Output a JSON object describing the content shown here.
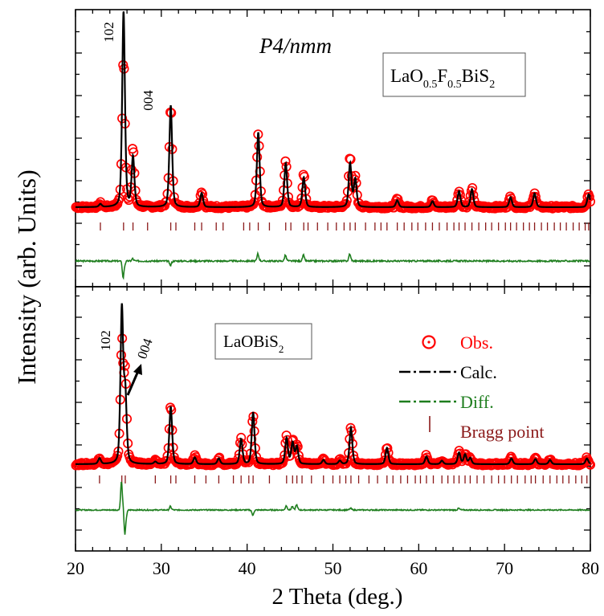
{
  "chart_data": [
    {
      "type": "line",
      "panel": "top",
      "sample_label": {
        "base": "LaO",
        "sub1": "0.5",
        "mid": "F",
        "sub2": "0.5",
        "tail": "BiS",
        "sub3": "2"
      },
      "space_group": "P4/nmm",
      "peak_annotations": [
        {
          "text": "102",
          "x": 25.5
        },
        {
          "text": "004",
          "x": 26.6
        }
      ],
      "xlim": [
        20,
        80
      ],
      "baseline": 250,
      "peaks": [
        {
          "x": 22.9,
          "obs": 268,
          "calc": 265,
          "diff": 0
        },
        {
          "x": 25.6,
          "obs": 1000,
          "calc": 1230,
          "diff": -70
        },
        {
          "x": 26.7,
          "obs": 545,
          "calc": 500,
          "diff": 10
        },
        {
          "x": 31.1,
          "obs": 760,
          "calc": 760,
          "diff": -20
        },
        {
          "x": 34.7,
          "obs": 330,
          "calc": 320,
          "diff": 0
        },
        {
          "x": 41.3,
          "obs": 620,
          "calc": 625,
          "diff": 30
        },
        {
          "x": 44.5,
          "obs": 490,
          "calc": 470,
          "diff": 25
        },
        {
          "x": 46.6,
          "obs": 415,
          "calc": 400,
          "diff": 25
        },
        {
          "x": 52.0,
          "obs": 510,
          "calc": 470,
          "diff": 30
        },
        {
          "x": 52.6,
          "obs": 400,
          "calc": 390,
          "diff": 0
        },
        {
          "x": 57.5,
          "obs": 290,
          "calc": 285,
          "diff": 0
        },
        {
          "x": 61.6,
          "obs": 285,
          "calc": 280,
          "diff": 0
        },
        {
          "x": 64.7,
          "obs": 335,
          "calc": 330,
          "diff": 0
        },
        {
          "x": 66.2,
          "obs": 345,
          "calc": 340,
          "diff": 0
        },
        {
          "x": 70.7,
          "obs": 305,
          "calc": 300,
          "diff": 0
        },
        {
          "x": 73.5,
          "obs": 325,
          "calc": 320,
          "diff": 0
        },
        {
          "x": 79.8,
          "obs": 320,
          "calc": 315,
          "diff": 0
        }
      ],
      "bragg_positions": [
        22.9,
        25.6,
        26.7,
        28.4,
        31.1,
        31.7,
        33.9,
        34.7,
        36.4,
        37.2,
        39.6,
        40.3,
        41.3,
        42.6,
        44.5,
        45.1,
        46.6,
        47.1,
        48.2,
        49.4,
        50.4,
        51.3,
        52.0,
        52.6,
        53.8,
        54.9,
        55.6,
        56.3,
        57.5,
        58.3,
        59.2,
        59.9,
        60.8,
        61.6,
        62.4,
        63.3,
        64.1,
        64.7,
        65.4,
        66.2,
        67.0,
        67.8,
        68.5,
        69.3,
        70.1,
        70.7,
        71.4,
        72.2,
        72.9,
        73.5,
        74.3,
        75.0,
        75.8,
        76.5,
        77.2,
        78.0,
        78.7,
        79.4,
        79.8
      ]
    },
    {
      "type": "line",
      "panel": "bottom",
      "sample_label": {
        "base": "LaOBiS",
        "sub": "2"
      },
      "peak_annotations": [
        {
          "text": "102",
          "x": 25.4
        },
        {
          "text": "004",
          "x": 26.1
        }
      ],
      "xlim": [
        20,
        80
      ],
      "baseline": 250,
      "peaks": [
        {
          "x": 22.8,
          "obs": 285,
          "calc": 280,
          "diff": 0
        },
        {
          "x": 25.4,
          "obs": 860,
          "calc": 1050,
          "diff": 160
        },
        {
          "x": 25.8,
          "obs": 690,
          "calc": 600,
          "diff": -140
        },
        {
          "x": 29.3,
          "obs": 265,
          "calc": 262,
          "diff": 0
        },
        {
          "x": 31.1,
          "obs": 560,
          "calc": 550,
          "diff": 20
        },
        {
          "x": 33.9,
          "obs": 290,
          "calc": 285,
          "diff": 0
        },
        {
          "x": 36.7,
          "obs": 285,
          "calc": 280,
          "diff": 0
        },
        {
          "x": 39.3,
          "obs": 385,
          "calc": 380,
          "diff": 0
        },
        {
          "x": 40.7,
          "obs": 505,
          "calc": 520,
          "diff": -30
        },
        {
          "x": 44.6,
          "obs": 395,
          "calc": 385,
          "diff": 25
        },
        {
          "x": 45.3,
          "obs": 370,
          "calc": 360,
          "diff": 20
        },
        {
          "x": 45.8,
          "obs": 350,
          "calc": 340,
          "diff": 30
        },
        {
          "x": 48.9,
          "obs": 275,
          "calc": 272,
          "diff": 0
        },
        {
          "x": 50.8,
          "obs": 270,
          "calc": 268,
          "diff": 0
        },
        {
          "x": 52.1,
          "obs": 450,
          "calc": 440,
          "diff": 10
        },
        {
          "x": 56.3,
          "obs": 340,
          "calc": 335,
          "diff": 0
        },
        {
          "x": 60.9,
          "obs": 295,
          "calc": 290,
          "diff": 0
        },
        {
          "x": 62.7,
          "obs": 270,
          "calc": 268,
          "diff": 0
        },
        {
          "x": 64.7,
          "obs": 315,
          "calc": 310,
          "diff": 10
        },
        {
          "x": 65.4,
          "obs": 305,
          "calc": 300,
          "diff": 0
        },
        {
          "x": 66.0,
          "obs": 285,
          "calc": 282,
          "diff": 0
        },
        {
          "x": 70.8,
          "obs": 285,
          "calc": 280,
          "diff": 0
        },
        {
          "x": 73.6,
          "obs": 280,
          "calc": 277,
          "diff": 0
        },
        {
          "x": 75.3,
          "obs": 275,
          "calc": 272,
          "diff": 0
        },
        {
          "x": 79.6,
          "obs": 285,
          "calc": 280,
          "diff": 0
        }
      ],
      "bragg_positions": [
        22.8,
        25.4,
        25.8,
        29.3,
        31.1,
        31.7,
        33.9,
        35.2,
        36.7,
        38.4,
        39.3,
        40.2,
        40.7,
        42.6,
        44.6,
        45.3,
        45.8,
        46.4,
        47.5,
        48.9,
        50.0,
        50.8,
        51.5,
        52.1,
        53.0,
        54.2,
        55.2,
        56.3,
        57.0,
        57.9,
        58.7,
        59.6,
        60.2,
        60.9,
        61.7,
        62.7,
        63.4,
        64.1,
        64.7,
        65.4,
        66.0,
        66.8,
        67.6,
        68.5,
        69.3,
        70.0,
        70.8,
        71.5,
        72.4,
        73.1,
        73.6,
        74.5,
        75.3,
        76.1,
        76.8,
        77.5,
        78.3,
        79.0,
        79.6
      ]
    }
  ],
  "axes": {
    "xlabel": "2 Theta (deg.)",
    "ylabel": "Intensity (arb. Units)",
    "xticks": [
      "20",
      "30",
      "40",
      "50",
      "60",
      "70",
      "80"
    ]
  },
  "legend": [
    {
      "label": "Obs.",
      "color": "#ff0000",
      "symbol": "circle"
    },
    {
      "label": "Calc.",
      "color": "#000000",
      "symbol": "dashdot"
    },
    {
      "label": "Diff.",
      "color": "#1e7e1e",
      "symbol": "dashdot"
    },
    {
      "label": "Bragg point",
      "color": "#8b1a1a",
      "symbol": "tick"
    }
  ],
  "colors": {
    "obs": "#ff0000",
    "calc": "#000000",
    "diff": "#1e7e1e",
    "bragg": "#8b1a1a"
  }
}
